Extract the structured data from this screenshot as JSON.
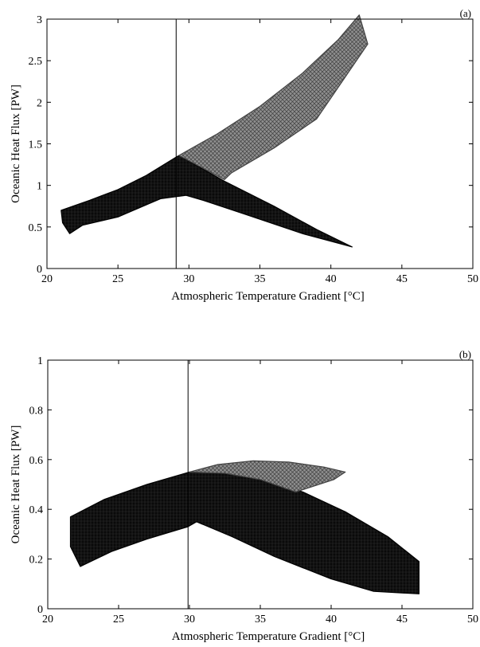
{
  "chart_data": [
    {
      "type": "area",
      "panel_label": "(a)",
      "xlabel": "Atmospheric Temperature Gradient [°C]",
      "ylabel": "Oceanic Heat Flux [PW]",
      "xlim": [
        20,
        50
      ],
      "ylim": [
        0,
        3
      ],
      "xticks": [
        20,
        25,
        30,
        35,
        40,
        45,
        50
      ],
      "yticks": [
        0,
        0.5,
        1,
        1.5,
        2,
        2.5,
        3
      ],
      "vline_x": 29.1,
      "grid": false,
      "series": [
        {
          "style": "dark",
          "polygon": [
            [
              21.0,
              0.7
            ],
            [
              23.0,
              0.82
            ],
            [
              25.0,
              0.95
            ],
            [
              27.0,
              1.12
            ],
            [
              29.0,
              1.33
            ],
            [
              29.3,
              1.36
            ],
            [
              32.5,
              1.05
            ],
            [
              36.0,
              0.75
            ],
            [
              39.0,
              0.47
            ],
            [
              41.5,
              0.26
            ],
            [
              38.0,
              0.42
            ],
            [
              34.0,
              0.65
            ],
            [
              31.0,
              0.82
            ],
            [
              29.8,
              0.88
            ],
            [
              28.0,
              0.84
            ],
            [
              25.0,
              0.62
            ],
            [
              22.5,
              0.52
            ],
            [
              21.6,
              0.42
            ],
            [
              21.1,
              0.55
            ]
          ]
        },
        {
          "style": "grey",
          "polygon": [
            [
              29.3,
              1.36
            ],
            [
              32.0,
              1.62
            ],
            [
              35.0,
              1.95
            ],
            [
              38.0,
              2.35
            ],
            [
              40.5,
              2.75
            ],
            [
              42.0,
              3.05
            ],
            [
              42.6,
              2.7
            ],
            [
              39.0,
              1.8
            ],
            [
              36.0,
              1.45
            ],
            [
              33.0,
              1.15
            ],
            [
              32.5,
              1.07
            ]
          ]
        }
      ]
    },
    {
      "type": "area",
      "panel_label": "(b)",
      "xlabel": "Atmospheric Temperature Gradient [°C]",
      "ylabel": "Oceanic Heat Flux [PW]",
      "xlim": [
        20,
        50
      ],
      "ylim": [
        0,
        1
      ],
      "xticks": [
        20,
        25,
        30,
        35,
        40,
        45,
        50
      ],
      "yticks": [
        0,
        0.2,
        0.4,
        0.6,
        0.8,
        1
      ],
      "vline_x": 29.9,
      "grid": false,
      "series": [
        {
          "style": "dark",
          "polygon": [
            [
              21.6,
              0.37
            ],
            [
              24.0,
              0.44
            ],
            [
              27.0,
              0.5
            ],
            [
              30.0,
              0.55
            ],
            [
              32.0,
              0.55
            ],
            [
              35.0,
              0.53
            ],
            [
              38.0,
              0.47
            ],
            [
              41.0,
              0.39
            ],
            [
              44.0,
              0.29
            ],
            [
              46.2,
              0.19
            ],
            [
              46.2,
              0.06
            ],
            [
              43.0,
              0.07
            ],
            [
              40.0,
              0.12
            ],
            [
              36.0,
              0.21
            ],
            [
              33.0,
              0.29
            ],
            [
              30.5,
              0.35
            ],
            [
              29.9,
              0.33
            ],
            [
              27.0,
              0.28
            ],
            [
              24.5,
              0.23
            ],
            [
              22.3,
              0.17
            ],
            [
              21.6,
              0.25
            ]
          ]
        },
        {
          "style": "grey",
          "polygon": [
            [
              30.0,
              0.55
            ],
            [
              32.0,
              0.58
            ],
            [
              34.5,
              0.595
            ],
            [
              37.0,
              0.59
            ],
            [
              39.5,
              0.57
            ],
            [
              41.0,
              0.55
            ],
            [
              40.2,
              0.52
            ],
            [
              37.5,
              0.47
            ],
            [
              35.0,
              0.52
            ],
            [
              32.5,
              0.545
            ]
          ]
        }
      ]
    }
  ]
}
